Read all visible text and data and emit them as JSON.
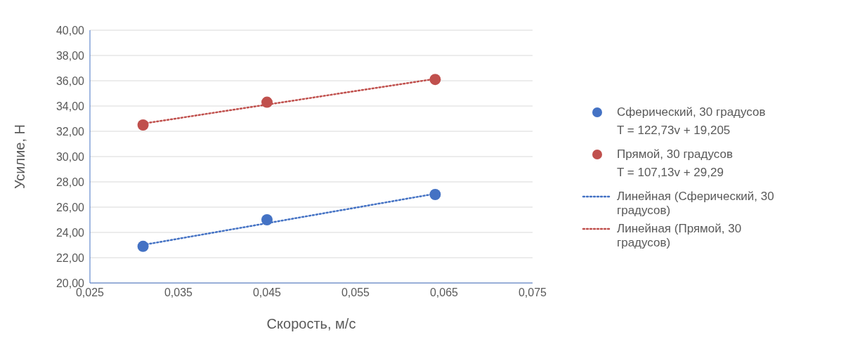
{
  "chart_data": {
    "type": "scatter",
    "xlabel": "Скорость, м/с",
    "ylabel": "Усилие, Н",
    "xlim": [
      0.025,
      0.075
    ],
    "xticks": [
      {
        "value": 0.025,
        "label": "0,025"
      },
      {
        "value": 0.035,
        "label": "0,035"
      },
      {
        "value": 0.045,
        "label": "0,045"
      },
      {
        "value": 0.055,
        "label": "0,055"
      },
      {
        "value": 0.065,
        "label": "0,065"
      },
      {
        "value": 0.075,
        "label": "0,075"
      }
    ],
    "ylim": [
      20,
      40
    ],
    "yticks": [
      {
        "value": 20,
        "label": "20,00"
      },
      {
        "value": 22,
        "label": "22,00"
      },
      {
        "value": 24,
        "label": "24,00"
      },
      {
        "value": 26,
        "label": "26,00"
      },
      {
        "value": 28,
        "label": "28,00"
      },
      {
        "value": 30,
        "label": "30,00"
      },
      {
        "value": 32,
        "label": "32,00"
      },
      {
        "value": 34,
        "label": "34,00"
      },
      {
        "value": 36,
        "label": "36,00"
      },
      {
        "value": 38,
        "label": "38,00"
      },
      {
        "value": 40,
        "label": "40,00"
      }
    ],
    "grid": "y",
    "legend": "right",
    "annotations": [
      "T = 122,73v + 19,205",
      "T = 107,13v + 29,29"
    ],
    "series": [
      {
        "name": "Сферический, 30 градусов",
        "marker": "circle",
        "color": "#4472c4",
        "x": [
          0.031,
          0.045,
          0.064
        ],
        "values": [
          22.9,
          25.0,
          27.0
        ]
      },
      {
        "name": "Прямой, 30 градусов",
        "marker": "circle",
        "color": "#c0504d",
        "x": [
          0.031,
          0.045,
          0.064
        ],
        "values": [
          32.5,
          34.3,
          36.1
        ]
      },
      {
        "name": "Линейная (Сферический, 30 градусов)",
        "type": "line",
        "line_style": "dotted",
        "color": "#4472c4",
        "x": [
          0.031,
          0.064
        ],
        "values": [
          23.01,
          27.06
        ]
      },
      {
        "name": "Линейная (Прямой, 30 градусов)",
        "type": "line",
        "line_style": "dotted",
        "color": "#c0504d",
        "x": [
          0.031,
          0.064
        ],
        "values": [
          32.61,
          36.15
        ]
      }
    ]
  }
}
